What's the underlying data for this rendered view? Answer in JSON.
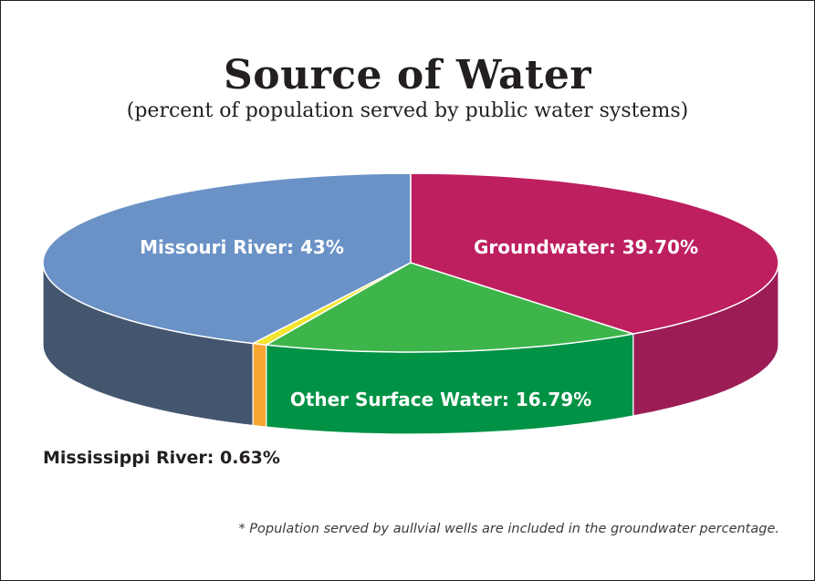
{
  "chart_data": {
    "type": "pie",
    "title": "Source of Water",
    "subtitle": "(percent of population served by public water systems)",
    "slices": [
      {
        "label": "Missouri River: 43%",
        "value": 43,
        "color": "#6a92c6",
        "side_color": "#44556e"
      },
      {
        "label": "Groundwater: 39.70%",
        "value": 39.7,
        "color": "#bd1f5f",
        "side_color": "#9c1d56"
      },
      {
        "label": "Other Surface Water: 16.79%",
        "value": 16.79,
        "color": "#3db54a",
        "side_color": "#009245"
      },
      {
        "label": "Mississippi River: 0.63%",
        "value": 0.63,
        "color": "#f2e52d",
        "side_color": "#f7a731"
      }
    ],
    "footnote": "* Population served by aullvial wells are included in the groundwater percentage."
  }
}
